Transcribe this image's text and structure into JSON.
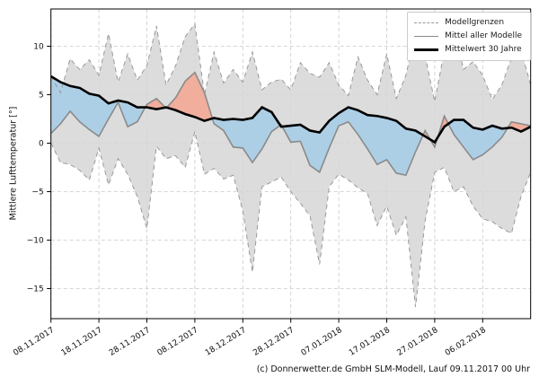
{
  "chart": {
    "y_axis_label": "Mittlere Lufttemperatur [°]",
    "footer": "(c) Donnerwetter.de GmbH SLM-Modell, Lauf 09.11.2017 00 Uhr",
    "legend": [
      {
        "label": "Modellgrenzen",
        "style": "dashed-gray"
      },
      {
        "label": "Mittel aller Modelle",
        "style": "solid-gray"
      },
      {
        "label": "Mittelwert 30 Jahre",
        "style": "thick-black"
      }
    ]
  },
  "chart_data": {
    "type": "line",
    "title": "",
    "xlabel": "",
    "ylabel": "Mittlere Lufttemperatur [°]",
    "x_unit": "days since 08.11.2017",
    "xlim": [
      0,
      100
    ],
    "ylim": [
      -18.1,
      13.8
    ],
    "grid": true,
    "legend_position": "upper right",
    "x": [
      0,
      2,
      4,
      6,
      8,
      10,
      12,
      14,
      16,
      18,
      20,
      22,
      24,
      26,
      28,
      30,
      32,
      34,
      36,
      38,
      40,
      42,
      44,
      46,
      48,
      50,
      52,
      54,
      56,
      58,
      60,
      62,
      64,
      66,
      68,
      70,
      72,
      74,
      76,
      78,
      80,
      82,
      84,
      86,
      88,
      90,
      92,
      94,
      96,
      98,
      100
    ],
    "series": [
      {
        "name": "Modellgrenzen (obere Grenze)",
        "style": "dashed",
        "color": "#999999",
        "values": [
          6.9,
          5.2,
          8.7,
          7.6,
          8.6,
          7.0,
          11.3,
          6.3,
          9.2,
          6.5,
          8.0,
          12.1,
          6.0,
          8.0,
          11.0,
          12.3,
          5.0,
          9.4,
          6.2,
          7.6,
          6.3,
          9.4,
          5.5,
          6.3,
          6.6,
          5.5,
          8.3,
          7.2,
          6.8,
          8.3,
          6.0,
          4.9,
          8.9,
          6.5,
          5.0,
          9.2,
          4.6,
          7.0,
          11.5,
          9.0,
          4.3,
          9.5,
          12.1,
          7.6,
          8.4,
          7.0,
          4.5,
          6.0,
          8.8,
          9.6,
          6.0
        ]
      },
      {
        "name": "Modellgrenzen (untere Grenze)",
        "style": "dashed",
        "color": "#999999",
        "values": [
          0.0,
          -2.0,
          -2.2,
          -2.8,
          -3.8,
          -0.5,
          -4.3,
          -1.6,
          -3.2,
          -5.5,
          -8.8,
          -0.3,
          -1.6,
          -1.3,
          -2.5,
          1.2,
          -3.2,
          -2.6,
          -3.7,
          -3.3,
          -7.0,
          -13.3,
          -4.5,
          -4.0,
          -3.5,
          -5.0,
          -6.2,
          -7.5,
          -12.5,
          -4.5,
          -3.2,
          -3.8,
          -4.6,
          -5.2,
          -8.5,
          -6.5,
          -9.5,
          -7.6,
          -16.9,
          -8.0,
          -3.0,
          -2.5,
          -5.0,
          -4.5,
          -6.5,
          -7.8,
          -8.1,
          -8.8,
          -9.3,
          -5.5,
          -3.0
        ]
      },
      {
        "name": "Mittel aller Modelle",
        "style": "solid",
        "color": "#8a8a8a",
        "values": [
          1.0,
          2.0,
          3.3,
          2.2,
          1.4,
          0.7,
          2.5,
          4.2,
          1.7,
          2.2,
          4.0,
          4.6,
          3.6,
          4.7,
          6.4,
          7.3,
          5.2,
          2.0,
          1.3,
          -0.4,
          -0.5,
          -2.0,
          -0.6,
          1.2,
          1.9,
          0.1,
          0.2,
          -2.3,
          -3.0,
          -0.5,
          1.8,
          2.2,
          0.9,
          -0.6,
          -2.2,
          -1.7,
          -3.1,
          -3.3,
          -0.9,
          1.3,
          -0.4,
          2.8,
          0.9,
          -0.4,
          -1.7,
          -1.2,
          -0.4,
          0.6,
          2.2,
          2.0,
          1.8
        ]
      },
      {
        "name": "Mittelwert 30 Jahre",
        "style": "solid-thick",
        "color": "#000000",
        "values": [
          6.9,
          6.3,
          5.9,
          5.7,
          5.1,
          4.9,
          4.1,
          4.4,
          4.2,
          3.7,
          3.7,
          3.5,
          3.7,
          3.4,
          3.0,
          2.7,
          2.3,
          2.6,
          2.4,
          2.5,
          2.4,
          2.6,
          3.7,
          3.2,
          1.7,
          1.8,
          1.9,
          1.3,
          1.1,
          2.3,
          3.1,
          3.7,
          3.4,
          2.9,
          2.8,
          2.6,
          2.3,
          1.5,
          1.3,
          0.7,
          0.1,
          1.7,
          2.4,
          2.4,
          1.6,
          1.4,
          1.8,
          1.5,
          1.6,
          1.2,
          1.7
        ]
      }
    ],
    "fills": {
      "envelope_fill": "#d6d6d6",
      "warm_anomaly_fill": "#f1ab98",
      "cold_anomaly_fill": "#a9cee6",
      "grid_color": "#c9c9c9"
    },
    "x_ticks": [
      {
        "day": 0,
        "label": "08.11.2017"
      },
      {
        "day": 10,
        "label": "18.11.2017"
      },
      {
        "day": 20,
        "label": "28.11.2017"
      },
      {
        "day": 30,
        "label": "08.12.2017"
      },
      {
        "day": 40,
        "label": "18.12.2017"
      },
      {
        "day": 50,
        "label": "28.12.2017"
      },
      {
        "day": 60,
        "label": "07.01.2018"
      },
      {
        "day": 70,
        "label": "17.01.2018"
      },
      {
        "day": 80,
        "label": "27.01.2018"
      },
      {
        "day": 90,
        "label": "06.02.2018"
      }
    ],
    "y_ticks": [
      {
        "value": 10,
        "label": "10"
      },
      {
        "value": 5,
        "label": "5"
      },
      {
        "value": 0,
        "label": "0"
      },
      {
        "value": -5,
        "label": "−5"
      },
      {
        "value": -10,
        "label": "−10"
      },
      {
        "value": -15,
        "label": "−15"
      }
    ]
  }
}
